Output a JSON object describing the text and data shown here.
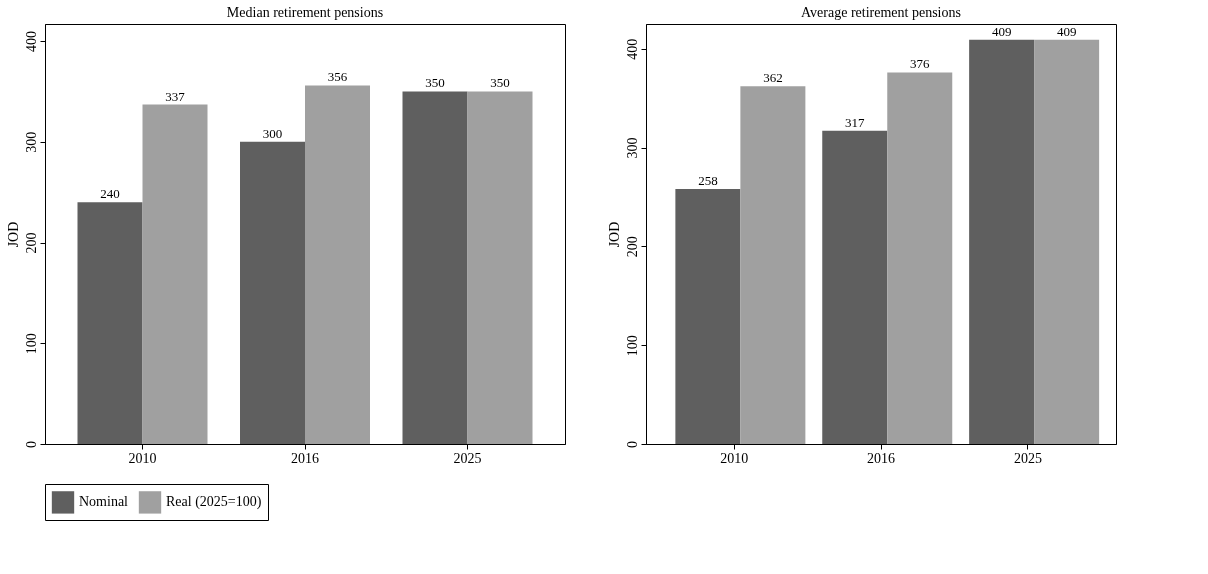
{
  "chart_data": [
    {
      "type": "bar",
      "title": "Median retirement pensions",
      "ylabel": "JOD",
      "categories": [
        "2010",
        "2016",
        "2025"
      ],
      "series": [
        {
          "name": "Nominal",
          "color": "#5f5f5f",
          "values": [
            240,
            300,
            350
          ]
        },
        {
          "name": "Real (2025=100)",
          "color": "#a0a0a0",
          "values": [
            337,
            356,
            350
          ]
        }
      ],
      "ylim": [
        0,
        417
      ],
      "yticks": [
        0,
        100,
        200,
        300,
        400
      ],
      "data_labels": true,
      "legend": "bottom"
    },
    {
      "type": "bar",
      "title": "Average retirement pensions",
      "ylabel": "JOD",
      "categories": [
        "2010",
        "2016",
        "2025"
      ],
      "series": [
        {
          "name": "Nominal",
          "color": "#5f5f5f",
          "values": [
            258,
            317,
            409
          ]
        },
        {
          "name": "Real (2025=100)",
          "color": "#a0a0a0",
          "values": [
            362,
            376,
            409
          ]
        }
      ],
      "ylim": [
        0,
        425
      ],
      "yticks": [
        0,
        100,
        200,
        300,
        400
      ],
      "data_labels": true,
      "legend": "bottom"
    }
  ]
}
